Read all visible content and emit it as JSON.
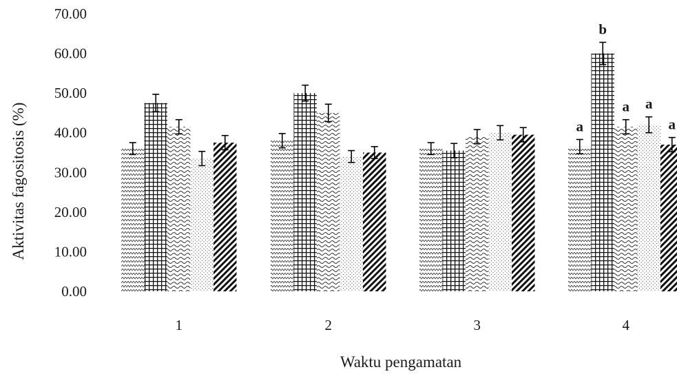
{
  "chart_data": {
    "type": "bar",
    "title": "",
    "xlabel": "Waktu pengamatan",
    "ylabel": "Aktivitas fagositosis (%)",
    "ylim": [
      0,
      70
    ],
    "yticks": [
      "0.00",
      "10.00",
      "20.00",
      "30.00",
      "40.00",
      "50.00",
      "60.00",
      "70.00"
    ],
    "categories": [
      "1",
      "2",
      "3",
      "4"
    ],
    "grid": false,
    "legend": "none",
    "series": [
      {
        "pattern": "zigzag-light",
        "values": [
          36.0,
          38.0,
          36.0,
          36.5
        ],
        "errors": [
          1.5,
          1.8,
          1.5,
          1.8
        ]
      },
      {
        "pattern": "grid",
        "values": [
          47.5,
          50.0,
          35.5,
          60.0
        ],
        "errors": [
          2.2,
          2.0,
          1.8,
          2.8
        ]
      },
      {
        "pattern": "wave",
        "values": [
          41.5,
          45.0,
          39.0,
          41.5
        ],
        "errors": [
          1.8,
          2.2,
          1.8,
          1.8
        ]
      },
      {
        "pattern": "dots",
        "values": [
          33.5,
          34.0,
          40.0,
          42.0
        ],
        "errors": [
          1.8,
          1.5,
          1.8,
          2.0
        ]
      },
      {
        "pattern": "diagonal",
        "values": [
          37.5,
          35.0,
          39.5,
          37.0
        ],
        "errors": [
          1.8,
          1.5,
          1.8,
          1.8
        ]
      }
    ],
    "significance_labels": [
      {
        "category": "4",
        "series_index": 0,
        "text": "a"
      },
      {
        "category": "4",
        "series_index": 1,
        "text": "b"
      },
      {
        "category": "4",
        "series_index": 2,
        "text": "a"
      },
      {
        "category": "4",
        "series_index": 3,
        "text": "a"
      },
      {
        "category": "4",
        "series_index": 4,
        "text": "a"
      }
    ]
  }
}
